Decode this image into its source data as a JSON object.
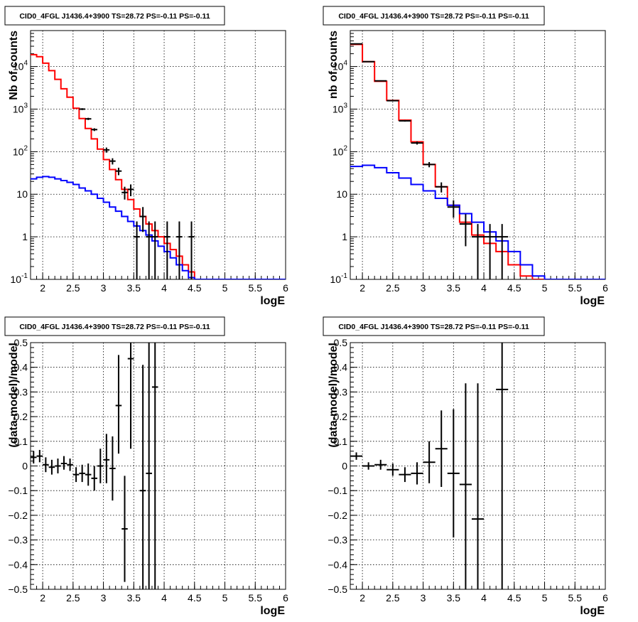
{
  "chart_data": [
    {
      "type": "histogram",
      "title": "CID0_4FGL J1436.4+3900 TS=28.72 PS=-0.11 PS=-0.11",
      "xlabel": "logE",
      "ylabel": "Nb of counts",
      "log_y": true,
      "xlim": [
        1.8,
        6.0
      ],
      "ylim": [
        0.1,
        70000
      ],
      "grid": true,
      "x_ticks": [
        "2",
        "2.5",
        "3",
        "3.5",
        "4",
        "4.5",
        "5",
        "5.5",
        "6"
      ],
      "y_ticks": [
        "10^-1",
        "1",
        "10",
        "10^2",
        "10^3",
        "10^4"
      ],
      "bin_edges": [
        1.8,
        1.9,
        2.0,
        2.1,
        2.2,
        2.3,
        2.4,
        2.5,
        2.6,
        2.7,
        2.8,
        2.9,
        3.0,
        3.1,
        3.2,
        3.3,
        3.4,
        3.5,
        3.6,
        3.7,
        3.8,
        3.9,
        4.0,
        4.1,
        4.2,
        4.3,
        4.4,
        4.5,
        4.6,
        4.7,
        4.8,
        4.9,
        5.0,
        5.1,
        5.2,
        5.3,
        5.4,
        5.5,
        5.6,
        5.7,
        5.8,
        5.9,
        6.0
      ],
      "series": [
        {
          "color": "#ff0000",
          "style": "step",
          "values": [
            19000,
            17000,
            12000,
            8000,
            5000,
            3000,
            1900,
            1050,
            600,
            350,
            200,
            115,
            65,
            38,
            22,
            13,
            7.5,
            4.5,
            3,
            2,
            1.4,
            1,
            0.7,
            0.5,
            0.35,
            0.22,
            0.15,
            0.1,
            0.1,
            0.1,
            0.1,
            0.1,
            0.1,
            0.1,
            0.1,
            0.1,
            0.1,
            0.1,
            0.1,
            0.1,
            0.1,
            0.1
          ]
        },
        {
          "color": "#0000ff",
          "style": "step",
          "values": [
            23,
            25,
            26,
            25,
            23,
            21,
            19,
            17,
            14,
            12,
            10,
            8,
            6.5,
            5,
            4,
            3,
            2.3,
            1.8,
            1.4,
            1.1,
            0.8,
            0.6,
            0.45,
            0.32,
            0.22,
            0.16,
            0.11,
            0.1,
            0.1,
            0.1,
            0.1,
            0.1,
            0.1,
            0.1,
            0.1,
            0.1,
            0.1,
            0.1,
            0.1,
            0.1,
            0.1,
            0.1
          ]
        },
        {
          "color": "#000000",
          "style": "errorbar",
          "points": [
            {
              "x": 2.65,
              "y": 1000,
              "xerr": 0.05,
              "lo": 950,
              "hi": 1050
            },
            {
              "x": 2.75,
              "y": 590,
              "xerr": 0.05,
              "lo": 555,
              "hi": 625
            },
            {
              "x": 2.85,
              "y": 330,
              "xerr": 0.05,
              "lo": 305,
              "hi": 355
            },
            {
              "x": 3.05,
              "y": 110,
              "xerr": 0.05,
              "lo": 95,
              "hi": 125
            },
            {
              "x": 3.15,
              "y": 60,
              "xerr": 0.05,
              "lo": 50,
              "hi": 70
            },
            {
              "x": 3.25,
              "y": 35,
              "xerr": 0.05,
              "lo": 28,
              "hi": 42
            },
            {
              "x": 3.35,
              "y": 11,
              "xerr": 0.05,
              "lo": 7.5,
              "hi": 15
            },
            {
              "x": 3.45,
              "y": 13,
              "xerr": 0.05,
              "lo": 9,
              "hi": 17
            },
            {
              "x": 3.55,
              "y": 1,
              "xerr": 0.05,
              "lo": 0.1,
              "hi": 2.3
            },
            {
              "x": 3.65,
              "y": 3,
              "xerr": 0.05,
              "lo": 1.3,
              "hi": 5
            },
            {
              "x": 3.75,
              "y": 1,
              "xerr": 0.05,
              "lo": 0.1,
              "hi": 2.3
            },
            {
              "x": 3.85,
              "y": 1,
              "xerr": 0.05,
              "lo": 0.1,
              "hi": 2.3
            },
            {
              "x": 4.05,
              "y": 1,
              "xerr": 0.05,
              "lo": 0.1,
              "hi": 2.3
            },
            {
              "x": 4.25,
              "y": 1,
              "xerr": 0.05,
              "lo": 0.1,
              "hi": 2.3
            },
            {
              "x": 4.45,
              "y": 1,
              "xerr": 0.05,
              "lo": 0.1,
              "hi": 2.3
            }
          ]
        }
      ]
    },
    {
      "type": "histogram",
      "title": "CID0_4FGL J1436.4+3900 TS=28.72 PS=-0.11 PS=-0.11",
      "xlabel": "logE",
      "ylabel": "nb of counts",
      "log_y": true,
      "xlim": [
        1.8,
        6.0
      ],
      "ylim": [
        0.1,
        70000
      ],
      "grid": true,
      "x_ticks": [
        "2",
        "2.5",
        "3",
        "3.5",
        "4",
        "4.5",
        "5",
        "5.5",
        "6"
      ],
      "y_ticks": [
        "10^-1",
        "1",
        "10",
        "10^2",
        "10^3",
        "10^4"
      ],
      "bin_edges": [
        1.8,
        2.0,
        2.2,
        2.4,
        2.6,
        2.8,
        3.0,
        3.2,
        3.4,
        3.6,
        3.8,
        4.0,
        4.2,
        4.4,
        4.6,
        4.8,
        5.0,
        5.2,
        5.4,
        5.6,
        5.8,
        6.0
      ],
      "series": [
        {
          "color": "#ff0000",
          "style": "step",
          "values": [
            33000,
            13000,
            4500,
            1600,
            550,
            170,
            50,
            15,
            5.5,
            2.2,
            1.1,
            0.7,
            0.45,
            0.22,
            0.12,
            0.1,
            0.1,
            0.1,
            0.1,
            0.1,
            0.1
          ]
        },
        {
          "color": "#0000ff",
          "style": "step",
          "values": [
            45,
            48,
            42,
            32,
            24,
            17,
            12,
            8,
            5.5,
            3.5,
            2.2,
            1.3,
            0.8,
            0.45,
            0.22,
            0.12,
            0.1,
            0.1,
            0.1,
            0.1,
            0.1
          ]
        },
        {
          "color": "#000000",
          "style": "errorbar",
          "points": [
            {
              "x": 1.9,
              "y": 34000,
              "xerr": 0.1,
              "lo": 33800,
              "hi": 34200
            },
            {
              "x": 2.1,
              "y": 13000,
              "xerr": 0.1,
              "lo": 12900,
              "hi": 13100
            },
            {
              "x": 2.3,
              "y": 4600,
              "xerr": 0.1,
              "lo": 4530,
              "hi": 4670
            },
            {
              "x": 2.5,
              "y": 1580,
              "xerr": 0.1,
              "lo": 1540,
              "hi": 1620
            },
            {
              "x": 2.7,
              "y": 530,
              "xerr": 0.1,
              "lo": 507,
              "hi": 553
            },
            {
              "x": 2.9,
              "y": 160,
              "xerr": 0.1,
              "lo": 147,
              "hi": 173
            },
            {
              "x": 3.1,
              "y": 50,
              "xerr": 0.1,
              "lo": 43,
              "hi": 57
            },
            {
              "x": 3.3,
              "y": 15,
              "xerr": 0.1,
              "lo": 11,
              "hi": 19
            },
            {
              "x": 3.5,
              "y": 5,
              "xerr": 0.1,
              "lo": 2.8,
              "hi": 7.2
            },
            {
              "x": 3.7,
              "y": 2,
              "xerr": 0.1,
              "lo": 0.6,
              "hi": 3.4
            },
            {
              "x": 3.9,
              "y": 1,
              "xerr": 0.1,
              "lo": 0.1,
              "hi": 2.0
            },
            {
              "x": 4.1,
              "y": 1,
              "xerr": 0.1,
              "lo": 0.1,
              "hi": 2.0
            },
            {
              "x": 4.3,
              "y": 1,
              "xerr": 0.1,
              "lo": 0.1,
              "hi": 2.0
            }
          ]
        }
      ]
    },
    {
      "type": "scatter",
      "title": "CID0_4FGL J1436.4+3900 TS=28.72 PS=-0.11 PS=-0.11",
      "xlabel": "logE",
      "ylabel": "(data-model)/model",
      "xlim": [
        1.8,
        6.0
      ],
      "ylim": [
        -0.5,
        0.5
      ],
      "grid": true,
      "x_ticks": [
        "2",
        "2.5",
        "3",
        "3.5",
        "4",
        "4.5",
        "5",
        "5.5",
        "6"
      ],
      "y_ticks": [
        "-0.5",
        "-0.4",
        "-0.3",
        "-0.2",
        "-0.1",
        "0",
        "0.1",
        "0.2",
        "0.3",
        "0.4",
        "0.5"
      ],
      "series": [
        {
          "color": "#000000",
          "style": "errorbar",
          "points": [
            {
              "x": 1.85,
              "y": 0.035,
              "xerr": 0.05,
              "lo": 0.01,
              "hi": 0.06
            },
            {
              "x": 1.95,
              "y": 0.04,
              "xerr": 0.05,
              "lo": 0.015,
              "hi": 0.065
            },
            {
              "x": 2.05,
              "y": 0.005,
              "xerr": 0.05,
              "lo": -0.025,
              "hi": 0.035
            },
            {
              "x": 2.15,
              "y": -0.005,
              "xerr": 0.05,
              "lo": -0.035,
              "hi": 0.025
            },
            {
              "x": 2.25,
              "y": 0.0,
              "xerr": 0.05,
              "lo": -0.03,
              "hi": 0.03
            },
            {
              "x": 2.35,
              "y": 0.01,
              "xerr": 0.05,
              "lo": -0.015,
              "hi": 0.04
            },
            {
              "x": 2.45,
              "y": 0.005,
              "xerr": 0.05,
              "lo": -0.02,
              "hi": 0.03
            },
            {
              "x": 2.55,
              "y": -0.035,
              "xerr": 0.05,
              "lo": -0.065,
              "hi": -0.005
            },
            {
              "x": 2.65,
              "y": -0.03,
              "xerr": 0.05,
              "lo": -0.065,
              "hi": 0.005
            },
            {
              "x": 2.75,
              "y": -0.035,
              "xerr": 0.05,
              "lo": -0.08,
              "hi": 0.01
            },
            {
              "x": 2.85,
              "y": -0.05,
              "xerr": 0.05,
              "lo": -0.1,
              "hi": 0.0
            },
            {
              "x": 2.95,
              "y": 0.0,
              "xerr": 0.05,
              "lo": -0.07,
              "hi": 0.07
            },
            {
              "x": 3.05,
              "y": 0.025,
              "xerr": 0.05,
              "lo": -0.07,
              "hi": 0.13
            },
            {
              "x": 3.15,
              "y": -0.01,
              "xerr": 0.05,
              "lo": -0.14,
              "hi": 0.12
            },
            {
              "x": 3.25,
              "y": 0.245,
              "xerr": 0.05,
              "lo": 0.05,
              "hi": 0.45
            },
            {
              "x": 3.35,
              "y": -0.255,
              "xerr": 0.05,
              "lo": -0.47,
              "hi": -0.04
            },
            {
              "x": 3.45,
              "y": 0.435,
              "xerr": 0.05,
              "lo": 0.07,
              "hi": 0.5
            },
            {
              "x": 3.65,
              "y": -0.1,
              "xerr": 0.05,
              "lo": -0.5,
              "hi": 0.41
            },
            {
              "x": 3.75,
              "y": -0.03,
              "xerr": 0.05,
              "lo": -0.5,
              "hi": 0.5
            },
            {
              "x": 3.85,
              "y": 0.32,
              "xerr": 0.05,
              "lo": -0.5,
              "hi": 0.5
            }
          ]
        }
      ]
    },
    {
      "type": "scatter",
      "title": "CID0_4FGL J1436.4+3900 TS=28.72 PS=-0.11 PS=-0.11",
      "xlabel": "logE",
      "ylabel": "(data-model)/model",
      "xlim": [
        1.8,
        6.0
      ],
      "ylim": [
        -0.5,
        0.5
      ],
      "grid": true,
      "x_ticks": [
        "2",
        "2.5",
        "3",
        "3.5",
        "4",
        "4.5",
        "5",
        "5.5",
        "6"
      ],
      "y_ticks": [
        "-0.5",
        "-0.4",
        "-0.3",
        "-0.2",
        "-0.1",
        "0",
        "0.1",
        "0.2",
        "0.3",
        "0.4",
        "0.5"
      ],
      "series": [
        {
          "color": "#000000",
          "style": "errorbar",
          "points": [
            {
              "x": 1.9,
              "y": 0.04,
              "xerr": 0.1,
              "lo": 0.025,
              "hi": 0.055
            },
            {
              "x": 2.1,
              "y": 0.0,
              "xerr": 0.1,
              "lo": -0.015,
              "hi": 0.015
            },
            {
              "x": 2.3,
              "y": 0.005,
              "xerr": 0.1,
              "lo": -0.015,
              "hi": 0.025
            },
            {
              "x": 2.5,
              "y": -0.015,
              "xerr": 0.1,
              "lo": -0.04,
              "hi": 0.01
            },
            {
              "x": 2.7,
              "y": -0.035,
              "xerr": 0.1,
              "lo": -0.065,
              "hi": -0.005
            },
            {
              "x": 2.9,
              "y": -0.03,
              "xerr": 0.1,
              "lo": -0.075,
              "hi": 0.015
            },
            {
              "x": 3.1,
              "y": 0.015,
              "xerr": 0.1,
              "lo": -0.07,
              "hi": 0.1
            },
            {
              "x": 3.3,
              "y": 0.07,
              "xerr": 0.1,
              "lo": -0.085,
              "hi": 0.225
            },
            {
              "x": 3.5,
              "y": -0.03,
              "xerr": 0.1,
              "lo": -0.29,
              "hi": 0.23
            },
            {
              "x": 3.7,
              "y": -0.075,
              "xerr": 0.1,
              "lo": -0.5,
              "hi": 0.335
            },
            {
              "x": 3.9,
              "y": -0.215,
              "xerr": 0.1,
              "lo": -0.5,
              "hi": 0.335
            },
            {
              "x": 4.3,
              "y": 0.31,
              "xerr": 0.1,
              "lo": -0.5,
              "hi": 0.5
            }
          ]
        }
      ]
    }
  ]
}
